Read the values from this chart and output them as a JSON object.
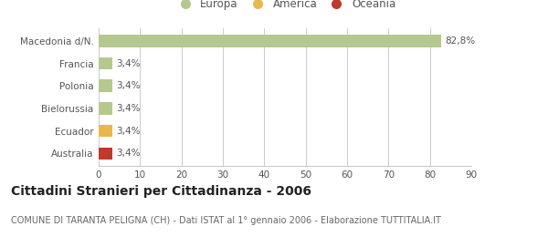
{
  "categories": [
    "Australia",
    "Ecuador",
    "Bielorussia",
    "Polonia",
    "Francia",
    "Macedonia d/N."
  ],
  "values": [
    3.4,
    3.4,
    3.4,
    3.4,
    3.4,
    82.8
  ],
  "bar_colors": [
    "#c0392b",
    "#e8b84b",
    "#b5c98e",
    "#b5c98e",
    "#b5c98e",
    "#b5c98e"
  ],
  "labels": [
    "3,4%",
    "3,4%",
    "3,4%",
    "3,4%",
    "3,4%",
    "82,8%"
  ],
  "xlim": [
    0,
    90
  ],
  "xticks": [
    0,
    10,
    20,
    30,
    40,
    50,
    60,
    70,
    80,
    90
  ],
  "title": "Cittadini Stranieri per Cittadinanza - 2006",
  "subtitle": "COMUNE DI TARANTA PELIGNA (CH) - Dati ISTAT al 1° gennaio 2006 - Elaborazione TUTTITALIA.IT",
  "legend": [
    {
      "label": "Europa",
      "color": "#b5c98e"
    },
    {
      "label": "America",
      "color": "#e8b84b"
    },
    {
      "label": "Oceania",
      "color": "#c0392b"
    }
  ],
  "bg_color": "#ffffff",
  "grid_color": "#cccccc",
  "bar_label_fontsize": 7.5,
  "axis_label_fontsize": 7.5,
  "title_fontsize": 10,
  "subtitle_fontsize": 7
}
